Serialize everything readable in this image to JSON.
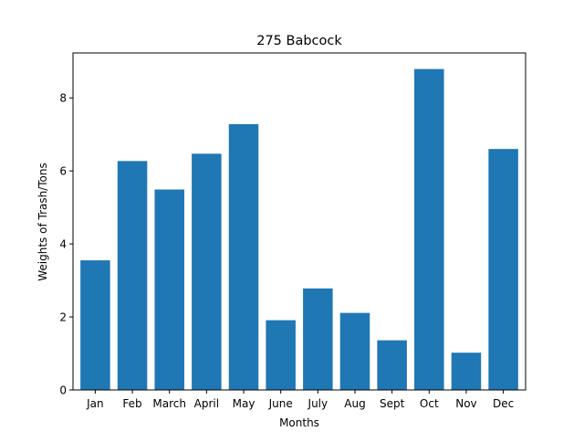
{
  "chart_data": {
    "type": "bar",
    "title": "275 Babcock",
    "xlabel": "Months",
    "ylabel": "Weights of Trash/Tons",
    "categories": [
      "Jan",
      "Feb",
      "March",
      "April",
      "May",
      "June",
      "July",
      "Aug",
      "Sept",
      "Oct",
      "Nov",
      "Dec"
    ],
    "values": [
      3.55,
      6.27,
      5.49,
      6.47,
      7.28,
      1.91,
      2.78,
      2.11,
      1.36,
      8.79,
      1.02,
      6.6
    ],
    "ylim": [
      0,
      9.23
    ],
    "yticks": [
      0,
      2,
      4,
      6,
      8
    ],
    "grid": false,
    "legend": "none",
    "bar_color": "#1f77b4"
  }
}
